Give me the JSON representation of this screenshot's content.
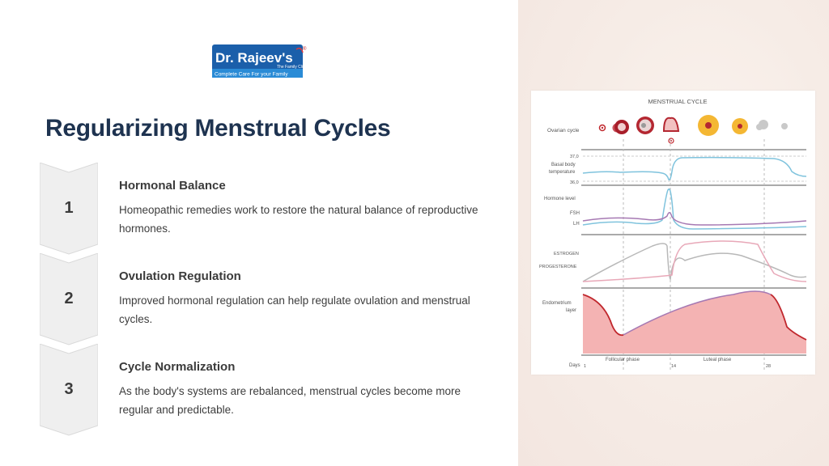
{
  "logo": {
    "brand": "Dr. Rajeev's",
    "tag_small": "The Family Clinic",
    "tagline": "Complete Care For your Family",
    "registered": "®"
  },
  "page": {
    "title": "Regularizing Menstrual Cycles"
  },
  "steps": [
    {
      "number": "1",
      "title": "Hormonal Balance",
      "description": "Homeopathic remedies work to restore the natural balance of reproductive hormones."
    },
    {
      "number": "2",
      "title": "Ovulation Regulation",
      "description": "Improved hormonal regulation can help regulate ovulation and menstrual cycles."
    },
    {
      "number": "3",
      "title": "Cycle Normalization",
      "description": "As the body's systems are rebalanced, menstrual cycles become more regular and predictable."
    }
  ],
  "diagram": {
    "title": "MENSTRUAL CYCLE",
    "ovarian_label": "Ovarian cycle",
    "bbt_label_1": "Basal body",
    "bbt_label_2": "temperature",
    "bbt_high": "37,0",
    "bbt_low": "36,0",
    "hormone_label": "Hormone level",
    "fsh_label": "FSH",
    "lh_label": "LH",
    "estrogen_label": "ESTROGEN",
    "progesterone_label": "PROGESTERONE",
    "endometrium_label_1": "Endometrium",
    "endometrium_label_2": "layer",
    "follicular_label": "Follicular phase",
    "luteal_label": "Luteal phase",
    "days_label": "Days",
    "day_1": "1",
    "day_14": "14",
    "day_28": "28",
    "colors": {
      "fsh": "#7fc3dd",
      "lh": "#a679b3",
      "estrogen": "#b8b8b8",
      "progesterone": "#e8a8b8",
      "endometrium": "#f4b3b3",
      "endometrium_line": "#c0272d"
    }
  }
}
